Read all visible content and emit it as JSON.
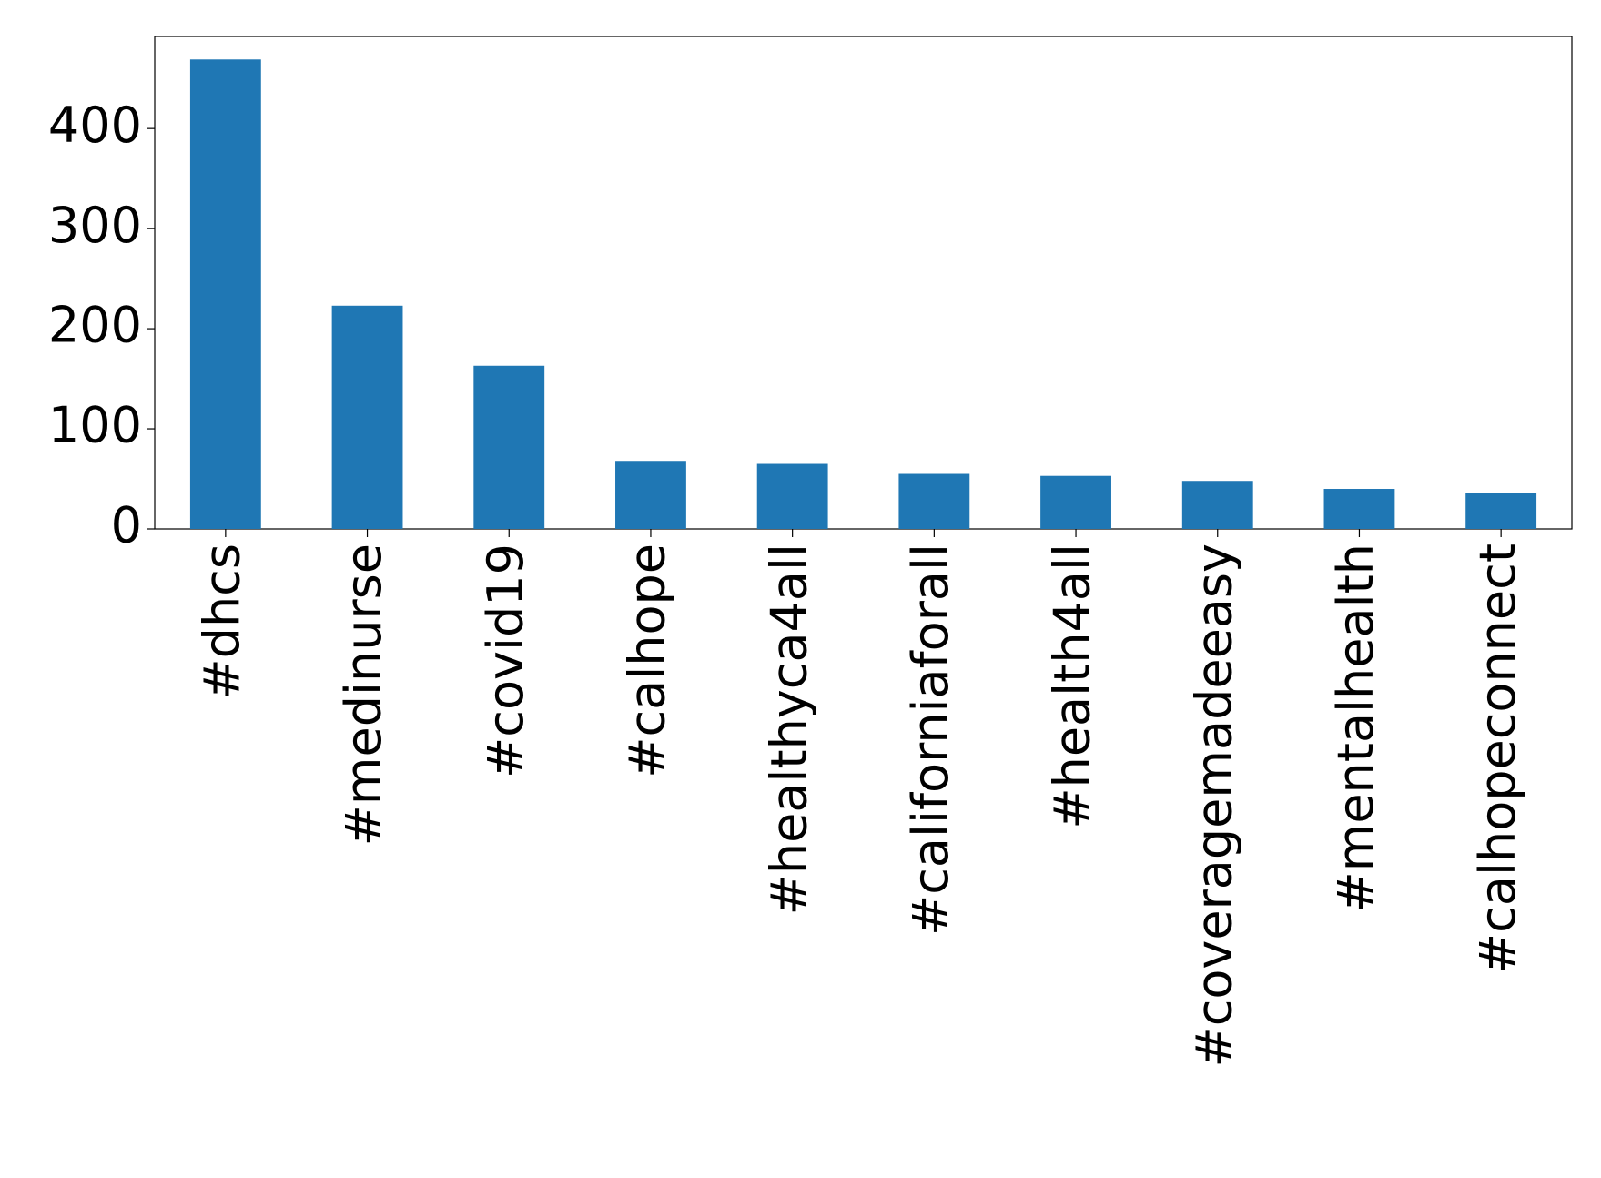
{
  "chart_data": {
    "type": "bar",
    "categories": [
      "#dhcs",
      "#medinurse",
      "#covid19",
      "#calhope",
      "#healthyca4all",
      "#californiaforall",
      "#health4all",
      "#coveragemadeeasy",
      "#mentalhealth",
      "#calhopeconnect"
    ],
    "values": [
      469,
      223,
      163,
      68,
      65,
      55,
      53,
      48,
      40,
      36
    ],
    "color": "#1f77b4",
    "ylim": [
      0,
      492
    ],
    "yticks": [
      0,
      100,
      200,
      300,
      400
    ],
    "grid": false
  }
}
